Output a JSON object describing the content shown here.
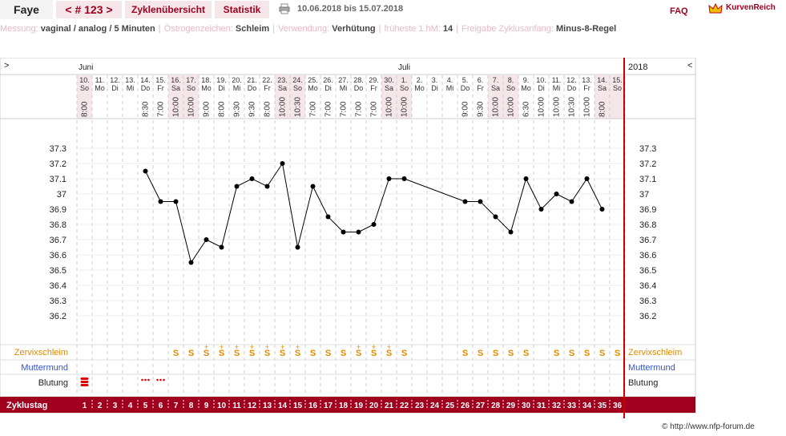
{
  "header": {
    "name": "Faye",
    "cycle_label": "< # 123 >",
    "tab_overview": "Zyklenübersicht",
    "tab_stats": "Statistik",
    "date_range": "10.06.2018 bis 15.07.2018",
    "faq": "FAQ",
    "brand": "KurvenReich",
    "print_icon": "printer-icon",
    "brand_icon": "crown-icon"
  },
  "info": [
    {
      "label": "Messung:",
      "value": "vaginal / analog / 5 Minuten"
    },
    {
      "label": "Östrogenzeichen:",
      "value": "Schleim"
    },
    {
      "label": "Verwendung:",
      "value": "Verhütung"
    },
    {
      "label": "früheste 1.hM:",
      "value": "14"
    },
    {
      "label": "Freigabe Zyklusanfang:",
      "value": "Minus-8-Regel"
    }
  ],
  "chart_nav": {
    "left": ">",
    "right": "<",
    "year": "2018"
  },
  "months": [
    {
      "label": "Juni",
      "col": 0
    },
    {
      "label": "Juli",
      "col": 21
    }
  ],
  "days": [
    {
      "date": "10.",
      "wd": "So",
      "time": "8:00",
      "hl": true
    },
    {
      "date": "11.",
      "wd": "Mo",
      "time": "",
      "hl": false
    },
    {
      "date": "12.",
      "wd": "Di",
      "time": "",
      "hl": false
    },
    {
      "date": "13.",
      "wd": "Mi",
      "time": "",
      "hl": false
    },
    {
      "date": "14.",
      "wd": "Do",
      "time": "8:30",
      "hl": false
    },
    {
      "date": "15.",
      "wd": "Fr",
      "time": "7:00",
      "hl": false
    },
    {
      "date": "16.",
      "wd": "Sa",
      "time": "10:00",
      "hl": true
    },
    {
      "date": "17.",
      "wd": "So",
      "time": "10:00",
      "hl": true
    },
    {
      "date": "18.",
      "wd": "Mo",
      "time": "9:00",
      "hl": false
    },
    {
      "date": "19.",
      "wd": "Di",
      "time": "8:00",
      "hl": false
    },
    {
      "date": "20.",
      "wd": "Mi",
      "time": "9:30",
      "hl": false
    },
    {
      "date": "21.",
      "wd": "Do",
      "time": "9:30",
      "hl": false
    },
    {
      "date": "22.",
      "wd": "Fr",
      "time": "8:00",
      "hl": false
    },
    {
      "date": "23.",
      "wd": "Sa",
      "time": "10:00",
      "hl": true
    },
    {
      "date": "24.",
      "wd": "So",
      "time": "10:30",
      "hl": true
    },
    {
      "date": "25.",
      "wd": "Mo",
      "time": "7:00",
      "hl": false
    },
    {
      "date": "26.",
      "wd": "Di",
      "time": "7:00",
      "hl": false
    },
    {
      "date": "27.",
      "wd": "Mi",
      "time": "7:00",
      "hl": false
    },
    {
      "date": "28.",
      "wd": "Do",
      "time": "7:00",
      "hl": false
    },
    {
      "date": "29.",
      "wd": "Fr",
      "time": "7:00",
      "hl": false
    },
    {
      "date": "30.",
      "wd": "Sa",
      "time": "10:00",
      "hl": true
    },
    {
      "date": "1.",
      "wd": "So",
      "time": "10:00",
      "hl": true
    },
    {
      "date": "2.",
      "wd": "Mo",
      "time": "",
      "hl": false
    },
    {
      "date": "3.",
      "wd": "Di",
      "time": "",
      "hl": false
    },
    {
      "date": "4.",
      "wd": "Mi",
      "time": "",
      "hl": false
    },
    {
      "date": "5.",
      "wd": "Do",
      "time": "9:00",
      "hl": false
    },
    {
      "date": "6.",
      "wd": "Fr",
      "time": "9:30",
      "hl": false
    },
    {
      "date": "7.",
      "wd": "Sa",
      "time": "10:00",
      "hl": true
    },
    {
      "date": "8.",
      "wd": "So",
      "time": "10:00",
      "hl": true
    },
    {
      "date": "9.",
      "wd": "Mo",
      "time": "6:30",
      "hl": false
    },
    {
      "date": "10.",
      "wd": "Di",
      "time": "10:00",
      "hl": false
    },
    {
      "date": "11.",
      "wd": "Mi",
      "time": "10:00",
      "hl": false
    },
    {
      "date": "12.",
      "wd": "Do",
      "time": "10:30",
      "hl": false
    },
    {
      "date": "13.",
      "wd": "Fr",
      "time": "10:00",
      "hl": false
    },
    {
      "date": "14.",
      "wd": "Sa",
      "time": "8:00",
      "hl": true
    },
    {
      "date": "15.",
      "wd": "So",
      "time": "",
      "hl": true
    }
  ],
  "chart_data": {
    "type": "line",
    "y_ticks": [
      "37.3",
      "37.2",
      "37.1",
      "37",
      "36.9",
      "36.8",
      "36.7",
      "36.6",
      "36.5",
      "36.4",
      "36.3",
      "36.2"
    ],
    "ylim": [
      36.2,
      37.3
    ],
    "series": [
      {
        "values": [
          null,
          null,
          null,
          null,
          37.15,
          36.95,
          36.95,
          36.55,
          36.7,
          36.65,
          37.05,
          37.1,
          37.05,
          37.2,
          36.65,
          37.05,
          36.85,
          36.75,
          36.75,
          36.8,
          37.1,
          37.1,
          null,
          null,
          null,
          36.95,
          36.95,
          36.85,
          36.75,
          37.1,
          36.9,
          37.0,
          36.95,
          37.1,
          36.9,
          null
        ]
      }
    ]
  },
  "rows": {
    "zervix_label": "Zervixschleim",
    "muttermund_label": "Muttermund",
    "blutung_label": "Blutung",
    "zyklustag_label": "Zyklustag",
    "zervix": [
      "",
      "",
      "",
      "",
      "",
      "",
      "S",
      "S",
      "S+",
      "S+",
      "S+",
      "S+",
      "S+",
      "S+",
      "S+",
      "S",
      "S",
      "S",
      "S+",
      "S+",
      "S+",
      "S",
      "",
      "",
      "",
      "S",
      "S",
      "S",
      "S",
      "S",
      "",
      "S",
      "S",
      "S",
      "S",
      "S"
    ],
    "blutung": [
      "heavy",
      "",
      "",
      "",
      "light",
      "light",
      "",
      "",
      "",
      "",
      "",
      "",
      "",
      "",
      "",
      "",
      "",
      "",
      "",
      "",
      "",
      "",
      "",
      "",
      "",
      "",
      "",
      "",
      "",
      "",
      "",
      "",
      "",
      "",
      "",
      ""
    ]
  },
  "footer": "© http://www.nfp-forum.de",
  "colors": {
    "accent": "#a0001e",
    "grid": "#ddd",
    "highlight": "#f5e6ea",
    "zervix": "#e08a00",
    "muttermund": "#3355cc"
  }
}
